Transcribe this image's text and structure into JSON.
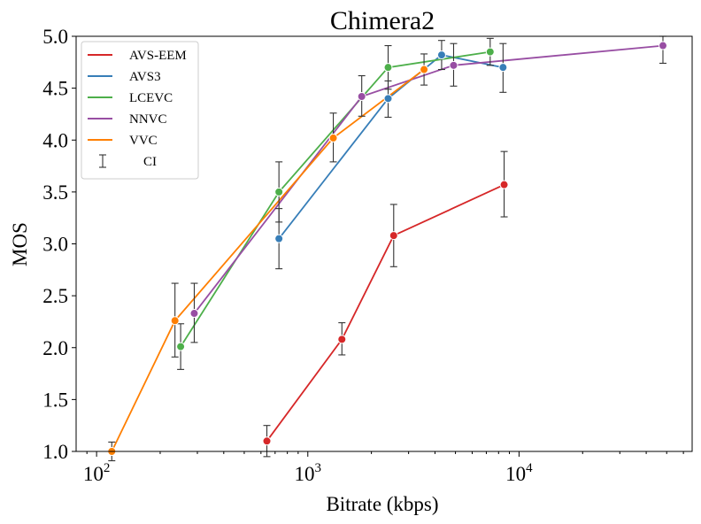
{
  "chart_data": {
    "type": "line",
    "title": "Chimera2",
    "xlabel": "Bitrate (kbps)",
    "ylabel": "MOS",
    "xscale": "log",
    "xlim": [
      80,
      66000
    ],
    "ylim": [
      1.0,
      5.0
    ],
    "x_ticks": [
      {
        "value": 100,
        "base": "10",
        "exp": "2"
      },
      {
        "value": 1000,
        "base": "10",
        "exp": "3"
      },
      {
        "value": 10000,
        "base": "10",
        "exp": "4"
      }
    ],
    "y_ticks": [
      {
        "value": 1.0,
        "label": "1.0"
      },
      {
        "value": 1.5,
        "label": "1.5"
      },
      {
        "value": 2.0,
        "label": "2.0"
      },
      {
        "value": 2.5,
        "label": "2.5"
      },
      {
        "value": 3.0,
        "label": "3.0"
      },
      {
        "value": 3.5,
        "label": "3.5"
      },
      {
        "value": 4.0,
        "label": "4.0"
      },
      {
        "value": 4.5,
        "label": "4.5"
      },
      {
        "value": 5.0,
        "label": "5.0"
      }
    ],
    "legend_position": "top-left",
    "ci_label": "CI",
    "series": [
      {
        "name": "AVS-EEM",
        "color": "#d62728",
        "points": [
          {
            "x": 640,
            "y": 1.1,
            "lo": 0.95,
            "hi": 1.25
          },
          {
            "x": 1450,
            "y": 2.08,
            "lo": 1.93,
            "hi": 2.24
          },
          {
            "x": 2550,
            "y": 3.08,
            "lo": 2.78,
            "hi": 3.38
          },
          {
            "x": 8500,
            "y": 3.57,
            "lo": 3.26,
            "hi": 3.89
          }
        ]
      },
      {
        "name": "AVS3",
        "color": "#377eb8",
        "points": [
          {
            "x": 730,
            "y": 3.05,
            "lo": 2.76,
            "hi": 3.34
          },
          {
            "x": 2400,
            "y": 4.4,
            "lo": 4.22,
            "hi": 4.57
          },
          {
            "x": 4300,
            "y": 4.82,
            "lo": 4.68,
            "hi": 4.96
          },
          {
            "x": 8400,
            "y": 4.7,
            "lo": 4.46,
            "hi": 4.93
          }
        ]
      },
      {
        "name": "LCEVC",
        "color": "#4daf4a",
        "points": [
          {
            "x": 250,
            "y": 2.01,
            "lo": 1.79,
            "hi": 2.23
          },
          {
            "x": 730,
            "y": 3.5,
            "lo": 3.21,
            "hi": 3.79
          },
          {
            "x": 2400,
            "y": 4.7,
            "lo": 4.49,
            "hi": 4.91
          },
          {
            "x": 7300,
            "y": 4.85,
            "lo": 4.72,
            "hi": 4.98
          }
        ]
      },
      {
        "name": "NNVC",
        "color": "#984ea3",
        "points": [
          {
            "x": 290,
            "y": 2.33,
            "lo": 2.05,
            "hi": 2.62
          },
          {
            "x": 1800,
            "y": 4.42,
            "lo": 4.23,
            "hi": 4.62
          },
          {
            "x": 4900,
            "y": 4.72,
            "lo": 4.52,
            "hi": 4.93
          },
          {
            "x": 48000,
            "y": 4.91,
            "lo": 4.74,
            "hi": 5.0
          }
        ]
      },
      {
        "name": "VVC",
        "color": "#ff7f00",
        "points": [
          {
            "x": 118,
            "y": 1.0,
            "lo": 0.91,
            "hi": 1.09
          },
          {
            "x": 235,
            "y": 2.26,
            "lo": 1.91,
            "hi": 2.62
          },
          {
            "x": 1320,
            "y": 4.02,
            "lo": 3.79,
            "hi": 4.26
          },
          {
            "x": 3550,
            "y": 4.68,
            "lo": 4.53,
            "hi": 4.83
          }
        ]
      }
    ]
  }
}
